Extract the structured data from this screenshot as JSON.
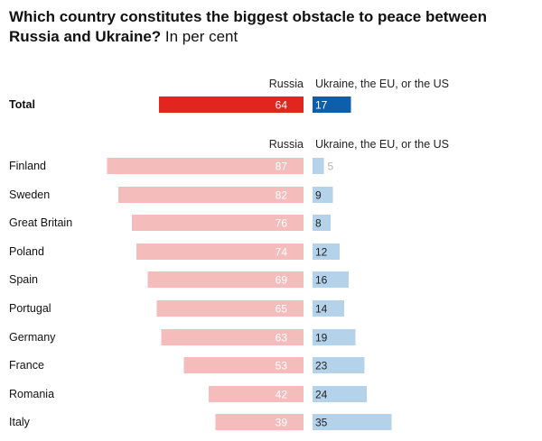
{
  "header": {
    "title_bold": "Which country constitutes the biggest obstacle to peace between Russia and Ukraine?",
    "title_sub": "In per cent"
  },
  "chart_data": {
    "type": "bar",
    "layout": "diverging",
    "total": {
      "label": "Total",
      "russia": 64,
      "ukraine_eu_us": 17
    },
    "categories": [
      "Finland",
      "Sweden",
      "Great Britain",
      "Poland",
      "Spain",
      "Portugal",
      "Germany",
      "France",
      "Romania",
      "Italy"
    ],
    "series": [
      {
        "name": "Russia",
        "values": [
          87,
          82,
          76,
          74,
          69,
          65,
          63,
          53,
          42,
          39
        ]
      },
      {
        "name": "Ukraine, the EU, or the US",
        "values": [
          5,
          9,
          8,
          12,
          16,
          14,
          19,
          23,
          24,
          35
        ]
      }
    ],
    "colors": {
      "russia_total": "#e3261d",
      "ukraine_total": "#0d5eab",
      "russia": "#f5bcbc",
      "ukraine": "#b4d3ea",
      "label_light": "#ffffff",
      "label_dark": "#222222",
      "label_outside": "#b5b5b5"
    }
  }
}
